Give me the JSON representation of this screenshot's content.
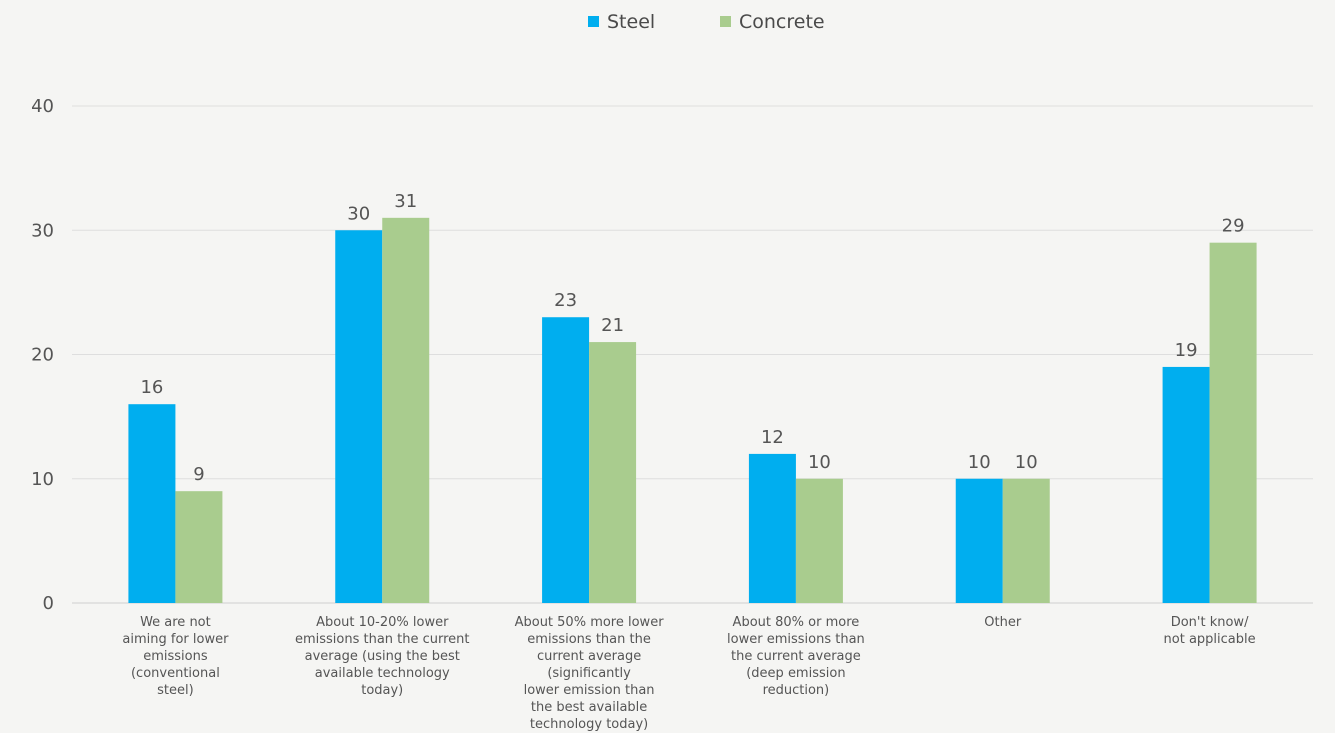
{
  "chart_data": {
    "type": "bar",
    "title": "",
    "xlabel": "",
    "ylabel": "",
    "ylim": [
      0,
      40
    ],
    "yticks": [
      0,
      10,
      20,
      30,
      40
    ],
    "grid": true,
    "legend_position": "top",
    "categories": [
      "We are not\naiming for lower\nemissions\n(conventional\nsteel)",
      "About 10-20% lower\nemissions than the current\naverage (using the best\navailable technology\ntoday)",
      "About 50% more lower\nemissions than the\ncurrent average\n(significantly\nlower emission than\nthe best available\ntechnology today)",
      "About 80% or more\nlower emissions than\nthe current average\n(deep emission\nreduction)",
      "Other",
      "Don't know/\nnot applicable"
    ],
    "series": [
      {
        "name": "Steel",
        "color": "#00aeef",
        "values": [
          16,
          30,
          23,
          12,
          10,
          19
        ]
      },
      {
        "name": "Concrete",
        "color": "#a9cc8e",
        "values": [
          9,
          31,
          21,
          10,
          10,
          29
        ]
      }
    ]
  }
}
